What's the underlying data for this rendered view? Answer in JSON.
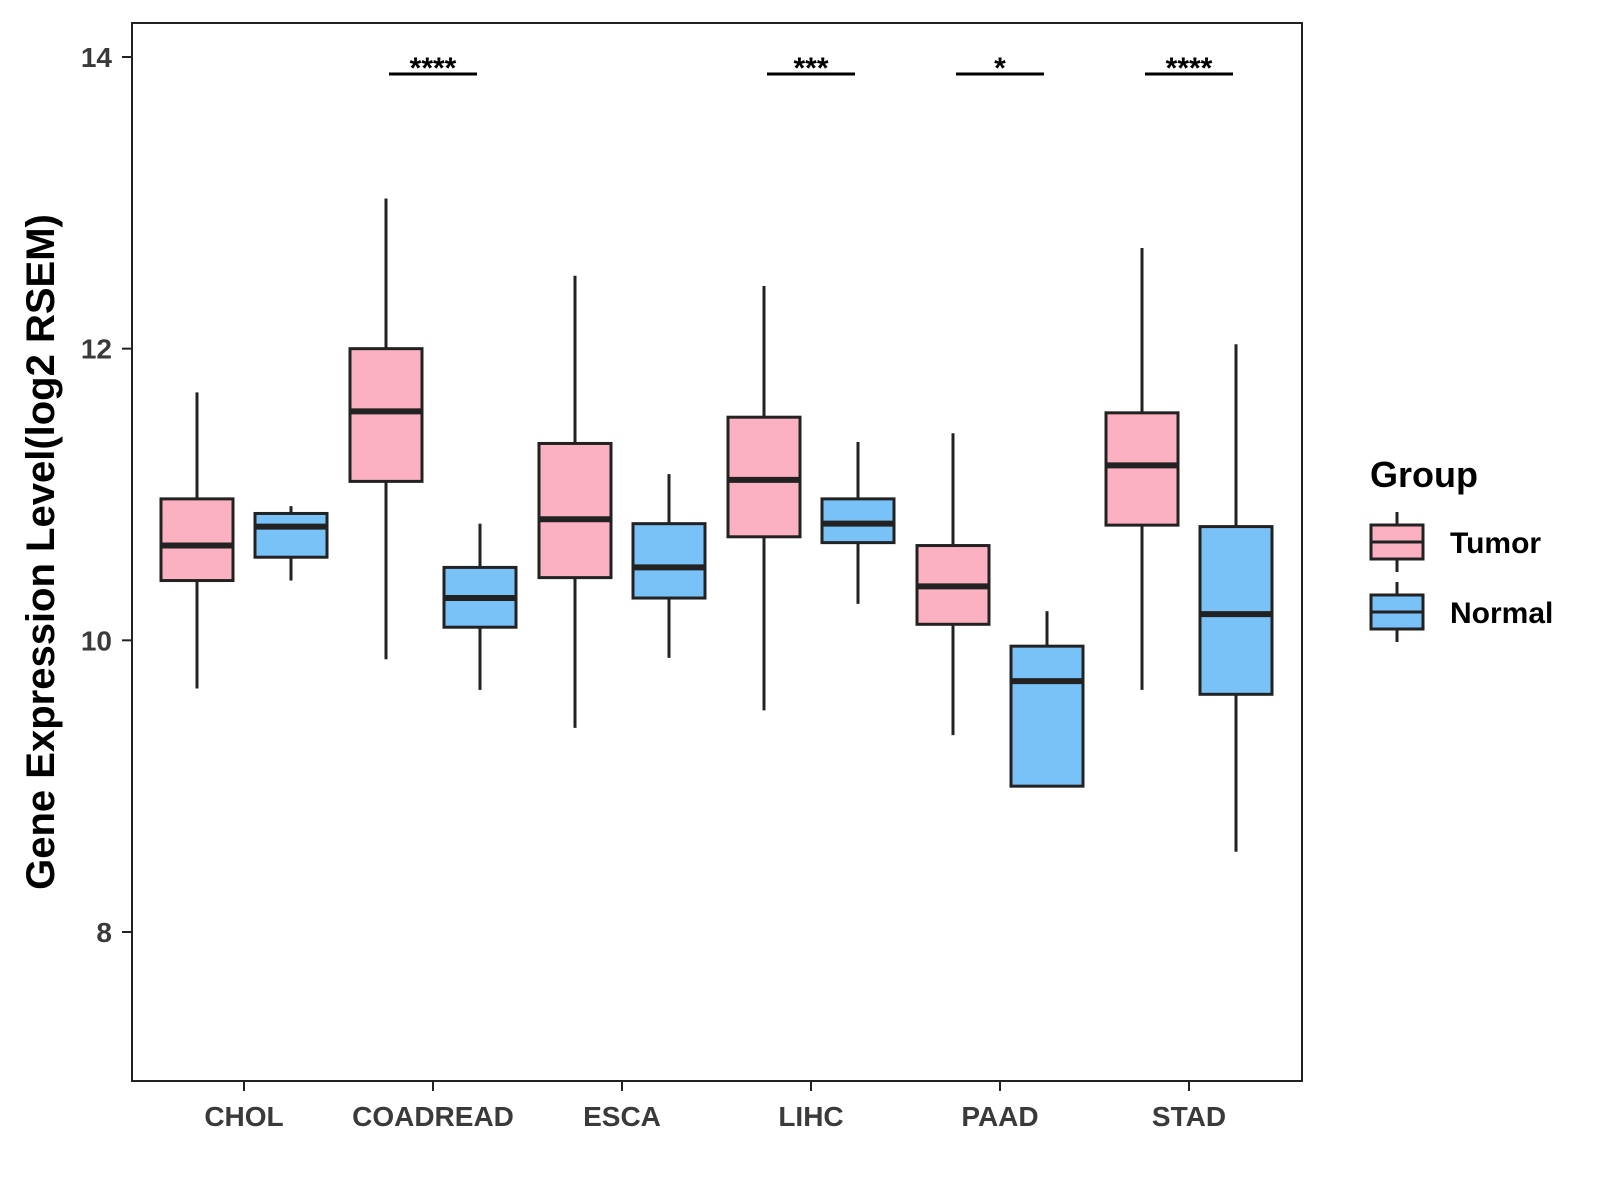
{
  "chart_data": {
    "type": "box",
    "title": "",
    "xlabel": "",
    "ylabel": "Gene Expression Level(log2 RSEM)",
    "ylim": [
      7,
      14.2
    ],
    "yticks": [
      8,
      10,
      12,
      14
    ],
    "ytick_labels": [
      "8",
      "10",
      "12",
      "14"
    ],
    "categories": [
      "CHOL",
      "COADREAD",
      "ESCA",
      "LIHC",
      "PAAD",
      "STAD"
    ],
    "legend": {
      "title": "Group",
      "position": "right",
      "entries": [
        {
          "name": "Tumor",
          "color": "#FBB1C1"
        },
        {
          "name": "Normal",
          "color": "#79C2F8"
        }
      ]
    },
    "series": [
      {
        "name": "Tumor",
        "color": "#FBB1C1",
        "boxes": [
          {
            "category": "CHOL",
            "whisker_low": 9.67,
            "q1": 10.41,
            "median": 10.65,
            "q3": 10.97,
            "whisker_high": 11.7
          },
          {
            "category": "COADREAD",
            "whisker_low": 9.87,
            "q1": 11.09,
            "median": 11.57,
            "q3": 12.0,
            "whisker_high": 13.03
          },
          {
            "category": "ESCA",
            "whisker_low": 9.4,
            "q1": 10.43,
            "median": 10.83,
            "q3": 11.35,
            "whisker_high": 12.5
          },
          {
            "category": "LIHC",
            "whisker_low": 9.52,
            "q1": 10.71,
            "median": 11.1,
            "q3": 11.53,
            "whisker_high": 12.43
          },
          {
            "category": "PAAD",
            "whisker_low": 9.35,
            "q1": 10.11,
            "median": 10.37,
            "q3": 10.65,
            "whisker_high": 11.42
          },
          {
            "category": "STAD",
            "whisker_low": 9.66,
            "q1": 10.79,
            "median": 11.2,
            "q3": 11.56,
            "whisker_high": 12.69
          }
        ]
      },
      {
        "name": "Normal",
        "color": "#79C2F8",
        "boxes": [
          {
            "category": "CHOL",
            "whisker_low": 10.41,
            "q1": 10.57,
            "median": 10.78,
            "q3": 10.87,
            "whisker_high": 10.92
          },
          {
            "category": "COADREAD",
            "whisker_low": 9.66,
            "q1": 10.09,
            "median": 10.29,
            "q3": 10.5,
            "whisker_high": 10.8
          },
          {
            "category": "ESCA",
            "whisker_low": 9.88,
            "q1": 10.29,
            "median": 10.5,
            "q3": 10.8,
            "whisker_high": 11.14
          },
          {
            "category": "LIHC",
            "whisker_low": 10.25,
            "q1": 10.67,
            "median": 10.8,
            "q3": 10.97,
            "whisker_high": 11.36
          },
          {
            "category": "PAAD",
            "whisker_low": 9.0,
            "q1": 9.0,
            "median": 9.72,
            "q3": 9.96,
            "whisker_high": 10.2
          },
          {
            "category": "STAD",
            "whisker_low": 8.55,
            "q1": 9.63,
            "median": 10.18,
            "q3": 10.78,
            "whisker_high": 12.03
          }
        ]
      }
    ],
    "annotations": [
      {
        "category": "COADREAD",
        "label": "****"
      },
      {
        "category": "LIHC",
        "label": "***"
      },
      {
        "category": "PAAD",
        "label": "*"
      },
      {
        "category": "STAD",
        "label": "****"
      }
    ]
  }
}
